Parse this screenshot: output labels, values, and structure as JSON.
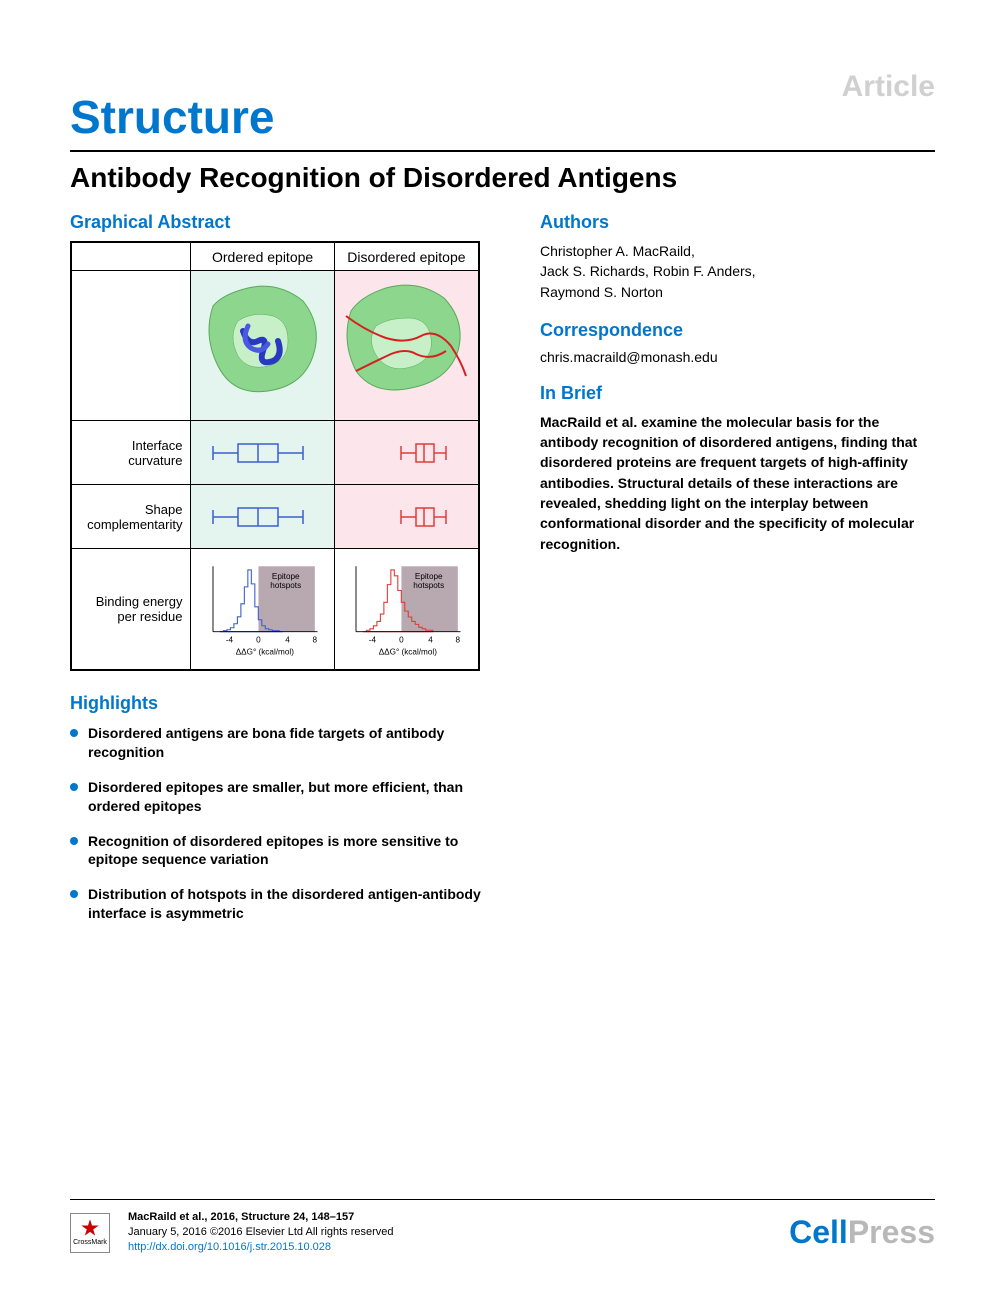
{
  "header": {
    "article_tag": "Article",
    "journal": "Structure",
    "title": "Antibody Recognition of Disordered Antigens"
  },
  "graphical_abstract": {
    "heading": "Graphical Abstract",
    "col_headers": {
      "ordered": "Ordered epitope",
      "disordered": "Disordered epitope"
    },
    "rows": [
      {
        "label": "Interface\ncurvature"
      },
      {
        "label": "Shape\ncomplementarity"
      },
      {
        "label": "Binding energy\nper residue"
      }
    ],
    "ordered_color": "#3b5fd1",
    "disordered_color": "#e23b3b",
    "ordered_bg": "#e4f5f0",
    "disordered_bg": "#fce6eb",
    "protein_green": "#8dd68d",
    "boxplot_ordered": {
      "whisker_min": 10,
      "q1": 35,
      "median": 55,
      "q3": 75,
      "whisker_max": 100,
      "color": "#3b5fd1"
    },
    "boxplot_disordered": {
      "whisker_min": 55,
      "q1": 70,
      "median": 78,
      "q3": 88,
      "whisker_max": 100,
      "color": "#e23b3b"
    },
    "hist": {
      "xlabel": "ΔΔG° (kcal/mol)",
      "xticks": [
        "-4",
        "0",
        "4",
        "8"
      ],
      "hotspot_label": "Epitope\nhotspots",
      "shaded_from": 0,
      "shaded_to": 8,
      "shaded_color": "#b8a8b0",
      "ordered": {
        "color": "#3b5fd1",
        "x": [
          -5,
          -4.5,
          -4,
          -3.5,
          -3,
          -2.5,
          -2,
          -1.5,
          -1,
          -0.5,
          0,
          0.5,
          1,
          1.5,
          2,
          2.5,
          3,
          3.5,
          4
        ],
        "y": [
          0,
          1,
          2,
          4,
          8,
          15,
          28,
          45,
          62,
          48,
          25,
          12,
          6,
          3,
          2,
          1,
          1,
          0,
          0
        ]
      },
      "disordered": {
        "color": "#e23b3b",
        "x": [
          -5,
          -4.5,
          -4,
          -3.5,
          -3,
          -2.5,
          -2,
          -1.5,
          -1,
          -0.5,
          0,
          0.5,
          1,
          1.5,
          2,
          2.5,
          3,
          3.5,
          4,
          4.5,
          5
        ],
        "y": [
          0,
          1,
          2,
          4,
          7,
          12,
          20,
          32,
          42,
          38,
          28,
          20,
          14,
          10,
          7,
          5,
          3,
          2,
          1,
          1,
          0
        ]
      }
    }
  },
  "highlights": {
    "heading": "Highlights",
    "items": [
      "Disordered antigens are bona fide targets of antibody recognition",
      "Disordered epitopes are smaller, but more efficient, than ordered epitopes",
      "Recognition of disordered epitopes is more sensitive to epitope sequence variation",
      "Distribution of hotspots in the disordered antigen-antibody interface is asymmetric"
    ]
  },
  "authors": {
    "heading": "Authors",
    "text": "Christopher A. MacRaild,\nJack S. Richards, Robin F. Anders,\nRaymond S. Norton"
  },
  "correspondence": {
    "heading": "Correspondence",
    "email": "chris.macraild@monash.edu"
  },
  "inbrief": {
    "heading": "In Brief",
    "text": "MacRaild et al. examine the molecular basis for the antibody recognition of disordered antigens, finding that disordered proteins are frequent targets of high-affinity antibodies. Structural details of these interactions are revealed, shedding light on the interplay between conformational disorder and the specificity of molecular recognition."
  },
  "footer": {
    "crossmark": "CrossMark",
    "citation_line1": "MacRaild et al., 2016, Structure 24, 148–157",
    "citation_line2": "January 5, 2016 ©2016 Elsevier Ltd All rights reserved",
    "citation_link": "http://dx.doi.org/10.1016/j.str.2015.10.028",
    "publisher_a": "Cell",
    "publisher_b": "Press"
  },
  "colors": {
    "brand_blue": "#0077cc",
    "light_gray": "#d0d0d0",
    "text": "#000000"
  }
}
